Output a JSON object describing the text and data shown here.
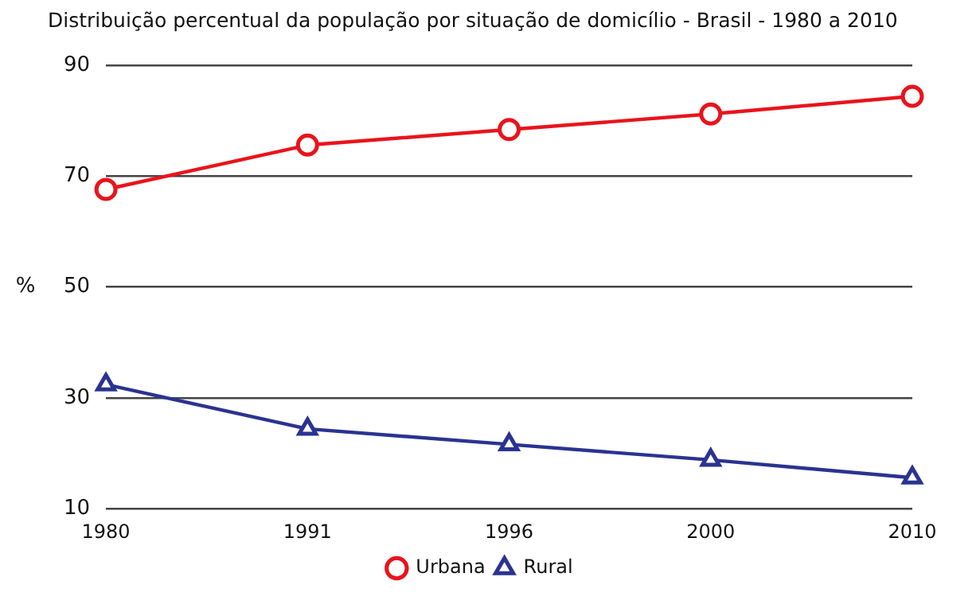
{
  "chart_data": {
    "type": "line",
    "title": "Distribuição percentual da população por situação de domicílio - Brasil - 1980 a 2010",
    "ylabel": "%",
    "categories": [
      "1980",
      "1991",
      "1996",
      "2000",
      "2010"
    ],
    "series": [
      {
        "name": "Urbana",
        "color": "#e8141c",
        "marker": "circle",
        "values": [
          67.6,
          75.6,
          78.4,
          81.2,
          84.4
        ]
      },
      {
        "name": "Rural",
        "color": "#2b3390",
        "marker": "triangle",
        "values": [
          32.4,
          24.4,
          21.6,
          18.8,
          15.6
        ]
      }
    ],
    "ylim": [
      10,
      90
    ],
    "yticks": [
      10,
      30,
      50,
      70,
      90
    ],
    "grid": "y",
    "legend": "bottom",
    "line_style": "solid"
  }
}
